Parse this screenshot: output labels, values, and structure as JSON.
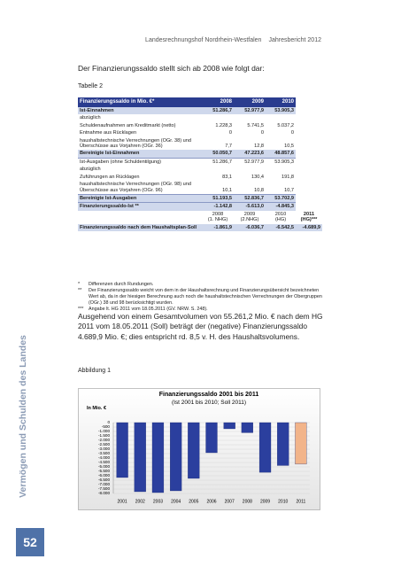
{
  "header": {
    "org": "Landesrechnungshof Nordrhein-Westfalen",
    "report": "Jahresbericht 2012"
  },
  "intro": "Der Finanzierungssaldo stellt sich ab 2008 wie folgt dar:",
  "table_caption": "Tabelle 2",
  "table": {
    "header": [
      "Finanzierungssaldo in Mio. €*",
      "2008",
      "2009",
      "2010"
    ],
    "rows": [
      [
        "Ist-Einnahmen",
        "51.286,7",
        "52.977,9",
        "53.905,3"
      ],
      [
        "abzüglich"
      ],
      [
        "Schuldenaufnahmen am Kreditmarkt (netto)",
        "1.228,3",
        "5.741,5",
        "5.037,2"
      ],
      [
        "Entnahme aus Rücklagen",
        "0",
        "0",
        "0"
      ],
      [
        "haushaltstechnische Verrechnungen (OGr. 38) und Überschüsse aus Vorjahren (OGr. 36)",
        "7,7",
        "12,8",
        "10,5"
      ],
      [
        "Bereinigte Ist-Einnahmen",
        "50.050,7",
        "47.223,6",
        "48.857,6"
      ],
      [
        "Ist-Ausgaben (ohne Schuldentilgung)",
        "51.286,7",
        "52.977,9",
        "53.905,3"
      ],
      [
        "abzüglich"
      ],
      [
        "Zuführungen an Rücklagen",
        "83,1",
        "130,4",
        "191,8"
      ],
      [
        "haushaltstechnische Verrechnungen (OGr. 98) und Überschüsse aus Vorjahren (OGr. 96)",
        "10,1",
        "10,8",
        "10,7"
      ],
      [
        "Bereinigte Ist-Ausgaben",
        "51.193,5",
        "52.836,7",
        "53.702,9"
      ],
      [
        "Finanzierungssaldo-Ist **",
        "-1.142,8",
        "-5.613,0",
        "-4.845,3"
      ]
    ],
    "subheader": [
      "2008\n(1. NHG)",
      "2009\n(2.NHG)",
      "2010\n(HG)",
      "2011\n(HG)***"
    ],
    "soll_row": [
      "Finanzierungssaldo nach dem Haushaltsplan-Soll",
      "-1.861,9",
      "-6.036,7",
      "-6.542,5",
      "-4.689,9"
    ]
  },
  "footnotes": [
    {
      "mark": "*",
      "text": "Differenzen durch Rundungen."
    },
    {
      "mark": "**",
      "text": "Der Finanzierungssaldo weicht von dem in der Haushaltsrechnung und Finanzierungsübersicht bezeichneten Wert ab, da in der hiesigen Berechnung auch noch die haushaltstechnischen Verrechnungen der Obergruppen (OGr.) 38 und 98 berücksichtigt wurden."
    },
    {
      "mark": "***",
      "text": "Angabe lt. HG 2011 vom 18.05.2011 (GV. NRW. S. 248)."
    }
  ],
  "paragraph": "Ausgehend von einem Gesamtvolumen von 55.261,2 Mio. € nach dem HG 2011 vom 18.05.2011 (Soll) beträgt der (negative) Finanzierungssaldo 4.689,9 Mio. €; dies entspricht rd. 8,5 v. H. des Haushaltsvolumens.",
  "figure_caption": "Abbildung 1",
  "chart_data": {
    "type": "bar",
    "title": "Finanzierungssaldo 2001 bis 2011",
    "subtitle": "(Ist 2001 bis 2010; Soll 2011)",
    "y_label": "In Mio. €",
    "categories": [
      "2001",
      "2002",
      "2003",
      "2004",
      "2005",
      "2006",
      "2007",
      "2008",
      "2009",
      "2010",
      "2011"
    ],
    "values": [
      -6200,
      -7800,
      -7900,
      -7700,
      -6300,
      -3400,
      -700,
      -1142.8,
      -5613,
      -4845.3,
      -4689.9
    ],
    "colors": [
      "#2b3f9e",
      "#2b3f9e",
      "#2b3f9e",
      "#2b3f9e",
      "#2b3f9e",
      "#2b3f9e",
      "#2b3f9e",
      "#2b3f9e",
      "#2b3f9e",
      "#2b3f9e",
      "#f2b48a"
    ],
    "ylim": [
      -8000,
      0
    ],
    "yticks": [
      0,
      -500,
      {
        "value": -1000,
        "label": "-1.000"
      },
      {
        "value": -1500,
        "label": "-1.500"
      },
      {
        "value": -2000,
        "label": "-2.000"
      },
      {
        "value": -2500,
        "label": "-2.500"
      },
      {
        "value": -3000,
        "label": "-3.000"
      },
      {
        "value": -3500,
        "label": "-3.500"
      },
      {
        "value": -4000,
        "label": "-4.000"
      },
      {
        "value": -4500,
        "label": "-4.500"
      },
      {
        "value": -5000,
        "label": "-5.000"
      },
      {
        "value": -5500,
        "label": "-5.500"
      },
      {
        "value": -6000,
        "label": "-6.000"
      },
      {
        "value": -6500,
        "label": "-6.500"
      },
      {
        "value": -7000,
        "label": "-7.000"
      },
      {
        "value": -7500,
        "label": "-7.500"
      },
      {
        "value": -8000,
        "label": "-8.000"
      }
    ],
    "grid": true
  },
  "sidebar": "Vermögen und Schulden des Landes",
  "page_number": "52"
}
